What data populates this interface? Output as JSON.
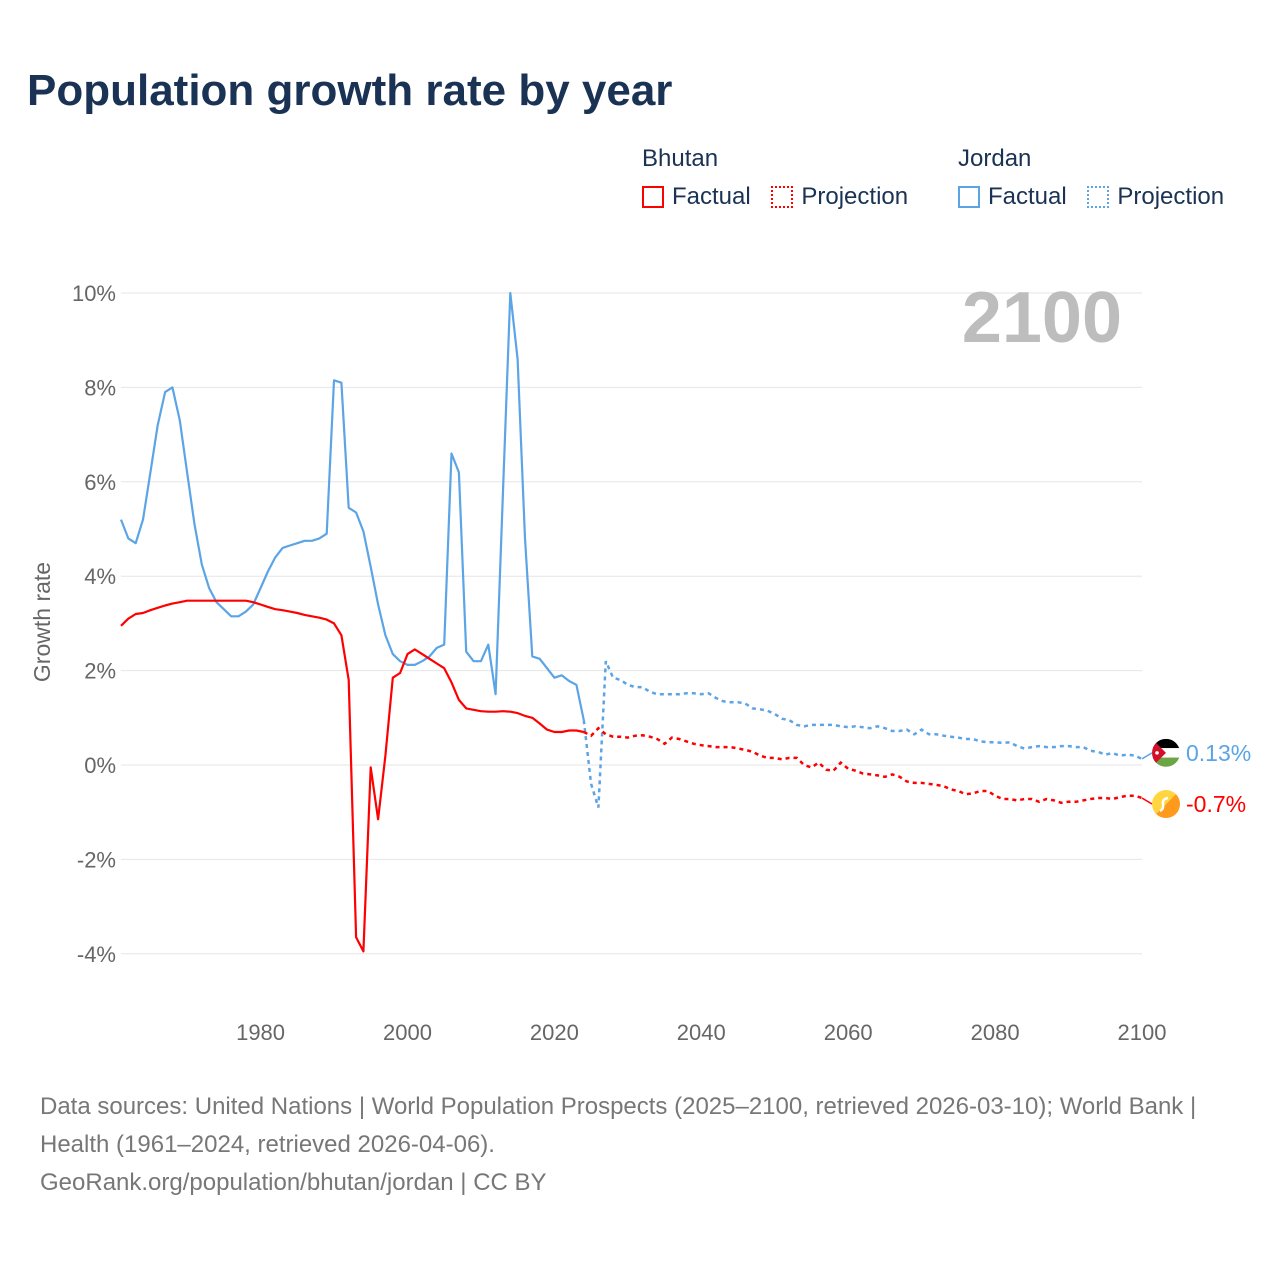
{
  "chart_data": {
    "type": "line",
    "title": "Population growth rate by year",
    "ylabel": "Growth rate",
    "xlabel": "",
    "xlim": [
      1961,
      2100
    ],
    "ylim": [
      -4,
      10
    ],
    "x_ticks": [
      1980,
      2000,
      2020,
      2040,
      2060,
      2080,
      2100
    ],
    "x_tick_labels": [
      "1980",
      "2000",
      "2020",
      "2040",
      "2060",
      "2080",
      "2100"
    ],
    "y_ticks": [
      10,
      8,
      6,
      4,
      2,
      0,
      -2,
      -4
    ],
    "y_tick_labels": [
      "10%",
      "8%",
      "6%",
      "4%",
      "2%",
      "0%",
      "-2%",
      "-4%"
    ],
    "grid": true,
    "year_watermark": "2100",
    "legend": {
      "placement": "top-right",
      "groups": [
        {
          "name": "Bhutan",
          "factual": "Factual",
          "projection": "Projection",
          "color": "#ff0000"
        },
        {
          "name": "Jordan",
          "factual": "Factual",
          "projection": "Projection",
          "color": "#5ba4e6"
        }
      ]
    },
    "end_labels": {
      "Jordan": "0.13%",
      "Bhutan": "-0.7%"
    },
    "series": [
      {
        "name": "Jordan",
        "color": "#5ba4e6",
        "factual_start": 1961,
        "factual": [
          5.2,
          4.8,
          4.7,
          5.2,
          6.2,
          7.2,
          7.9,
          8.0,
          7.3,
          6.2,
          5.1,
          4.25,
          3.75,
          3.45,
          3.3,
          3.15,
          3.15,
          3.25,
          3.4,
          3.75,
          4.1,
          4.4,
          4.6,
          4.65,
          4.7,
          4.75,
          4.75,
          4.8,
          4.9,
          8.15,
          8.1,
          5.45,
          5.35,
          4.95,
          4.2,
          3.4,
          2.75,
          2.35,
          2.2,
          2.12,
          2.12,
          2.2,
          2.3,
          2.48,
          2.55,
          6.6,
          6.2,
          2.4,
          2.2,
          2.2,
          2.55,
          1.5,
          5.8,
          10.0,
          8.6,
          4.8,
          2.3,
          2.25,
          2.05,
          1.85,
          1.9,
          1.78,
          1.7,
          0.95
        ],
        "projection_start": 2024,
        "projection": [
          0.95,
          -0.4,
          -0.9,
          2.2,
          1.85,
          1.8,
          1.7,
          1.65,
          1.65,
          1.55,
          1.5,
          1.5,
          1.5,
          1.5,
          1.52,
          1.52,
          1.5,
          1.52,
          1.42,
          1.35,
          1.33,
          1.33,
          1.3,
          1.2,
          1.18,
          1.15,
          1.08,
          0.98,
          0.95,
          0.85,
          0.82,
          0.85,
          0.85,
          0.85,
          0.85,
          0.82,
          0.8,
          0.82,
          0.8,
          0.78,
          0.82,
          0.78,
          0.72,
          0.72,
          0.75,
          0.65,
          0.75,
          0.65,
          0.65,
          0.62,
          0.6,
          0.58,
          0.55,
          0.55,
          0.5,
          0.48,
          0.48,
          0.47,
          0.48,
          0.4,
          0.35,
          0.38,
          0.4,
          0.38,
          0.38,
          0.4,
          0.4,
          0.38,
          0.38,
          0.3,
          0.28,
          0.22,
          0.25,
          0.2,
          0.22,
          0.2,
          0.13
        ]
      },
      {
        "name": "Bhutan",
        "color": "#ff0000",
        "factual_start": 1961,
        "factual": [
          2.95,
          3.1,
          3.2,
          3.22,
          3.28,
          3.33,
          3.38,
          3.42,
          3.45,
          3.48,
          3.48,
          3.48,
          3.48,
          3.48,
          3.48,
          3.48,
          3.48,
          3.48,
          3.45,
          3.4,
          3.35,
          3.3,
          3.28,
          3.25,
          3.22,
          3.18,
          3.15,
          3.12,
          3.08,
          3.0,
          2.75,
          1.8,
          -3.65,
          -3.95,
          -0.05,
          -1.15,
          0.2,
          1.85,
          1.95,
          2.35,
          2.45,
          2.35,
          2.25,
          2.15,
          2.05,
          1.75,
          1.38,
          1.2,
          1.17,
          1.14,
          1.13,
          1.13,
          1.14,
          1.13,
          1.1,
          1.04,
          1.0,
          0.88,
          0.75,
          0.7,
          0.7,
          0.73,
          0.73,
          0.7
        ],
        "projection_start": 2024,
        "projection": [
          0.7,
          0.62,
          0.78,
          0.65,
          0.6,
          0.6,
          0.58,
          0.62,
          0.63,
          0.6,
          0.55,
          0.45,
          0.58,
          0.55,
          0.5,
          0.45,
          0.42,
          0.4,
          0.38,
          0.38,
          0.38,
          0.35,
          0.32,
          0.28,
          0.2,
          0.15,
          0.15,
          0.12,
          0.15,
          0.15,
          0.0,
          -0.05,
          0.05,
          -0.1,
          -0.12,
          0.05,
          -0.08,
          -0.12,
          -0.18,
          -0.2,
          -0.22,
          -0.25,
          -0.2,
          -0.25,
          -0.35,
          -0.38,
          -0.38,
          -0.4,
          -0.42,
          -0.45,
          -0.52,
          -0.55,
          -0.62,
          -0.6,
          -0.55,
          -0.55,
          -0.65,
          -0.72,
          -0.72,
          -0.75,
          -0.72,
          -0.72,
          -0.78,
          -0.72,
          -0.75,
          -0.8,
          -0.78,
          -0.78,
          -0.75,
          -0.72,
          -0.7,
          -0.7,
          -0.72,
          -0.68,
          -0.65,
          -0.65,
          -0.7
        ]
      }
    ]
  },
  "footer": {
    "sources": "Data sources: United Nations | World Population Prospects (2025–2100, retrieved 2026-03-10); World Bank | Health (1961–2024, retrieved 2026-04-06).",
    "credit": "GeoRank.org/population/bhutan/jordan | CC BY"
  }
}
